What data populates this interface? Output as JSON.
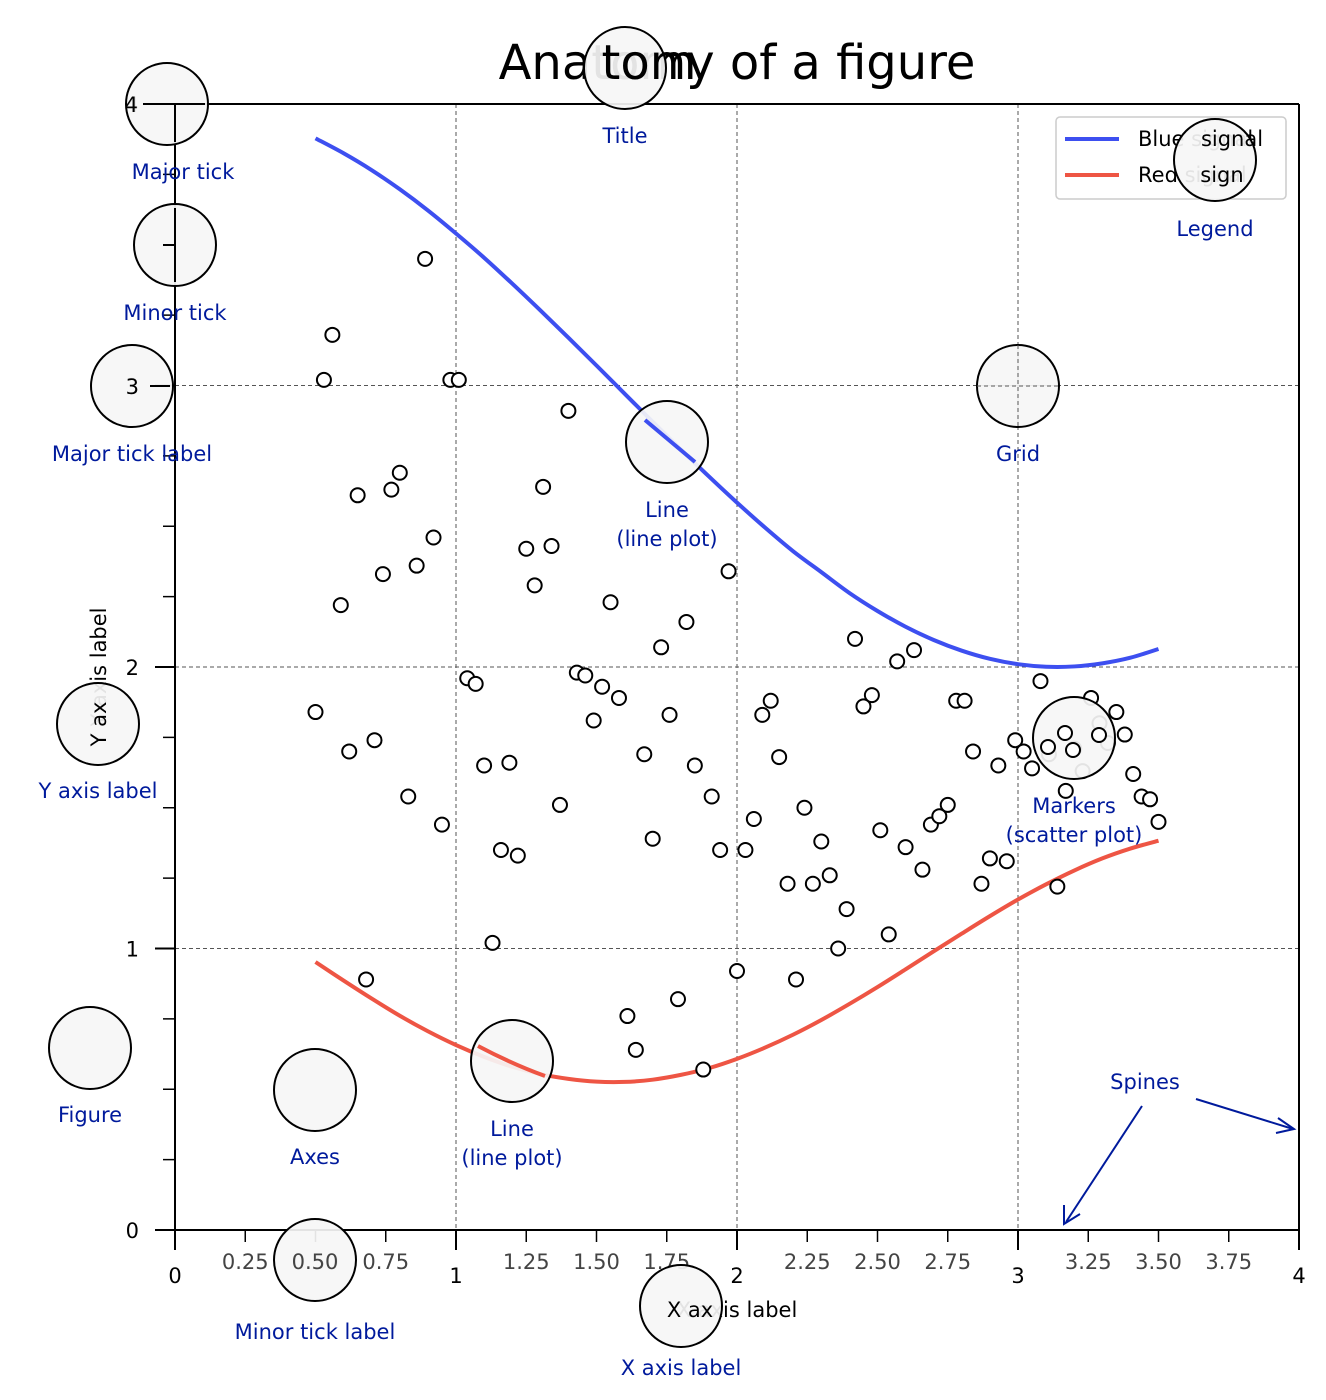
{
  "chart_data": {
    "type": "line",
    "title": "Anatomy of a figure",
    "xlabel": "X axis label",
    "ylabel": "Y axis label",
    "xlim": [
      0,
      4
    ],
    "ylim": [
      0,
      4
    ],
    "grid": true,
    "legend_position": "top-right",
    "x_major_ticks": [
      0,
      1,
      2,
      3,
      4
    ],
    "x_major_tick_labels": [
      "0",
      "1",
      "2",
      "3",
      "4"
    ],
    "x_minor_ticks": [
      0.25,
      0.5,
      0.75,
      1.25,
      1.5,
      1.75,
      2.25,
      2.5,
      2.75,
      3.25,
      3.5,
      3.75
    ],
    "x_minor_tick_labels": [
      "0.25",
      "0.50",
      "0.75",
      "1.25",
      "1.50",
      "1.75",
      "2.25",
      "2.50",
      "2.75",
      "3.25",
      "3.50",
      "3.75"
    ],
    "y_major_ticks": [
      0,
      1,
      2,
      3,
      4
    ],
    "y_major_tick_labels": [
      "0",
      "1",
      "2",
      "3",
      "4"
    ],
    "y_minor_ticks": [
      0.25,
      0.5,
      0.75,
      1.25,
      1.5,
      1.75,
      2.25,
      2.5,
      2.75,
      3.25,
      3.5,
      3.75
    ],
    "series": [
      {
        "name": "Blue signal",
        "type": "line",
        "color": "#3d4ff0",
        "x": [
          0.5,
          0.6,
          0.7,
          0.8,
          0.9,
          1.0,
          1.1,
          1.2,
          1.3,
          1.4,
          1.5,
          1.6,
          1.7,
          1.8,
          1.9,
          2.0,
          2.1,
          2.2,
          2.3,
          2.4,
          2.5,
          2.6,
          2.7,
          2.8,
          2.9,
          3.0,
          3.1,
          3.2,
          3.3,
          3.4,
          3.5
        ],
        "y": [
          3.878,
          3.825,
          3.765,
          3.697,
          3.622,
          3.54,
          3.454,
          3.362,
          3.267,
          3.17,
          3.071,
          2.971,
          2.871,
          2.773,
          2.677,
          2.584,
          2.495,
          2.411,
          2.337,
          2.263,
          2.199,
          2.143,
          2.096,
          2.058,
          2.029,
          2.01,
          2.001,
          2.002,
          2.013,
          2.033,
          2.064
        ]
      },
      {
        "name": "Red signal",
        "type": "line",
        "color": "#ee5544",
        "x": [
          0.5,
          0.6,
          0.7,
          0.8,
          0.9,
          1.0,
          1.1,
          1.2,
          1.3,
          1.4,
          1.5,
          1.6,
          1.7,
          1.8,
          1.9,
          2.0,
          2.1,
          2.2,
          2.3,
          2.4,
          2.5,
          2.6,
          2.7,
          2.8,
          2.9,
          3.0,
          3.1,
          3.2,
          3.3,
          3.4,
          3.5
        ],
        "y": [
          0.952,
          0.886,
          0.822,
          0.761,
          0.706,
          0.657,
          0.615,
          0.58,
          0.554,
          0.537,
          0.527,
          0.526,
          0.534,
          0.551,
          0.575,
          0.608,
          0.648,
          0.694,
          0.746,
          0.803,
          0.863,
          0.926,
          0.99,
          1.053,
          1.115,
          1.174,
          1.228,
          1.277,
          1.32,
          1.355,
          1.383
        ]
      },
      {
        "name": "Markers (scatter)",
        "type": "scatter",
        "x": [
          0.5,
          0.53,
          0.56,
          0.59,
          0.62,
          0.65,
          0.68,
          0.71,
          0.74,
          0.77,
          0.8,
          0.83,
          0.86,
          0.89,
          0.92,
          0.95,
          0.98,
          1.01,
          1.04,
          1.07,
          1.1,
          1.13,
          1.16,
          1.19,
          1.22,
          1.25,
          1.28,
          1.31,
          1.34,
          1.37,
          1.4,
          1.43,
          1.46,
          1.49,
          1.52,
          1.55,
          1.58,
          1.61,
          1.64,
          1.67,
          1.7,
          1.73,
          1.76,
          1.79,
          1.82,
          1.85,
          1.88,
          1.91,
          1.94,
          1.97,
          2.0,
          2.03,
          2.06,
          2.09,
          2.12,
          2.15,
          2.18,
          2.21,
          2.24,
          2.27,
          2.3,
          2.33,
          2.36,
          2.39,
          2.42,
          2.45,
          2.48,
          2.51,
          2.54,
          2.57,
          2.6,
          2.63,
          2.66,
          2.69,
          2.72,
          2.75,
          2.78,
          2.81,
          2.84,
          2.87,
          2.9,
          2.93,
          2.96,
          2.99,
          3.02,
          3.05,
          3.08,
          3.11,
          3.14,
          3.17,
          3.2,
          3.23,
          3.26,
          3.29,
          3.32,
          3.35,
          3.38,
          3.41,
          3.44,
          3.47,
          3.5
        ],
        "y": [
          1.84,
          3.02,
          3.18,
          2.22,
          1.7,
          2.61,
          0.89,
          1.74,
          2.33,
          2.63,
          2.69,
          1.54,
          2.36,
          3.45,
          2.46,
          1.44,
          3.02,
          3.02,
          1.96,
          1.94,
          1.65,
          1.02,
          1.35,
          1.66,
          1.33,
          2.42,
          2.29,
          2.64,
          2.43,
          1.51,
          2.91,
          1.98,
          1.97,
          1.81,
          1.93,
          2.23,
          1.89,
          0.76,
          0.64,
          1.69,
          1.39,
          2.07,
          1.83,
          0.82,
          2.16,
          1.65,
          0.57,
          1.54,
          1.35,
          2.34,
          0.92,
          1.35,
          1.46,
          1.83,
          1.88,
          1.68,
          1.23,
          0.89,
          1.5,
          1.23,
          1.38,
          1.26,
          1.0,
          1.14,
          2.1,
          1.86,
          1.9,
          1.42,
          1.05,
          2.02,
          1.36,
          2.06,
          1.28,
          1.44,
          1.47,
          1.51,
          1.88,
          1.88,
          1.7,
          1.23,
          1.32,
          1.65,
          1.31,
          1.74,
          1.7,
          1.64,
          1.95,
          1.69,
          1.22,
          1.56,
          1.71,
          1.63,
          1.89,
          1.8,
          1.73,
          1.84,
          1.76,
          1.62,
          1.54,
          1.53,
          1.45
        ]
      }
    ],
    "legend": [
      {
        "label": "Blue signal",
        "color": "#3d4ff0"
      },
      {
        "label": "Red signal",
        "color": "#ee5544"
      }
    ],
    "annotations": [
      {
        "id": "major-tick",
        "text": "Major tick",
        "at": [
          0.0,
          4.0
        ]
      },
      {
        "id": "minor-tick",
        "text": "Minor tick",
        "at": [
          0.0,
          3.5
        ]
      },
      {
        "id": "major-tick-label",
        "text": "Major tick label",
        "at": [
          -0.15,
          3.0
        ]
      },
      {
        "id": "title",
        "text": "Title",
        "at": [
          1.6,
          4.13
        ]
      },
      {
        "id": "legend",
        "text": "Legend",
        "at": [
          3.62,
          3.82
        ]
      },
      {
        "id": "line-top",
        "text": "Line\n(line plot)",
        "at": [
          1.75,
          2.8
        ]
      },
      {
        "id": "grid",
        "text": "Grid",
        "at": [
          3.0,
          3.0
        ]
      },
      {
        "id": "y-axis-label",
        "text": "Y axis label",
        "at": [
          -0.27,
          1.8
        ]
      },
      {
        "id": "markers",
        "text": "Markers\n(scatter plot)",
        "at": [
          3.2,
          1.75
        ]
      },
      {
        "id": "figure",
        "text": "Figure",
        "at": [
          -0.3,
          0.65
        ]
      },
      {
        "id": "axes",
        "text": "Axes",
        "at": [
          0.5,
          0.5
        ]
      },
      {
        "id": "line-bottom",
        "text": "Line\n(line plot)",
        "at": [
          1.2,
          0.6
        ]
      },
      {
        "id": "minor-tick-label",
        "text": "Minor tick label",
        "at": [
          0.5,
          -0.11
        ]
      },
      {
        "id": "x-axis-label",
        "text": "X axis label",
        "at": [
          1.8,
          -0.27
        ]
      },
      {
        "id": "spines",
        "text": "Spines"
      }
    ],
    "annotation_color": "#001a9c"
  }
}
